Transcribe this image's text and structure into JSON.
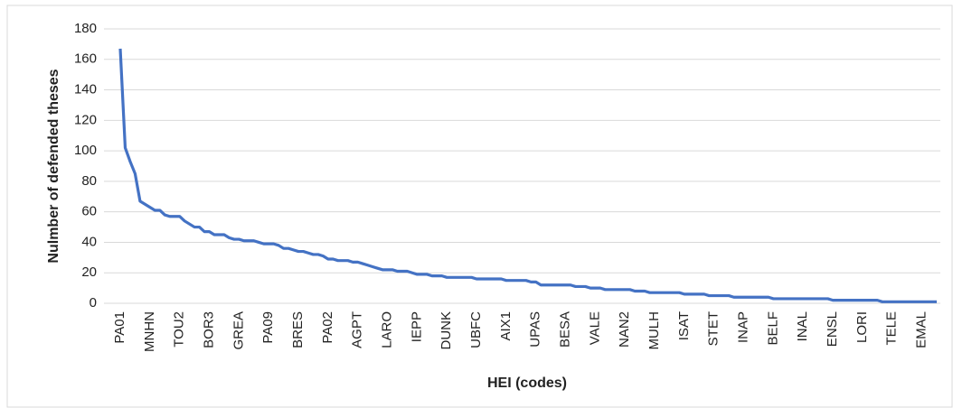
{
  "chart_data": {
    "type": "line",
    "y_label": "Nulmber of defended theses",
    "x_label": "HEI (codes)",
    "categories": [
      "PA01",
      null,
      null,
      null,
      null,
      null,
      "MNHN",
      null,
      null,
      null,
      null,
      null,
      "TOU2",
      null,
      null,
      null,
      null,
      null,
      "BOR3",
      null,
      null,
      null,
      null,
      null,
      "GREA",
      null,
      null,
      null,
      null,
      null,
      "PA09",
      null,
      null,
      null,
      null,
      null,
      "BRES",
      null,
      null,
      null,
      null,
      null,
      "PA02",
      null,
      null,
      null,
      null,
      null,
      "AGPT",
      null,
      null,
      null,
      null,
      null,
      "LARO",
      null,
      null,
      null,
      null,
      null,
      "IEPP",
      null,
      null,
      null,
      null,
      null,
      "DUNK",
      null,
      null,
      null,
      null,
      null,
      "UBFC",
      null,
      null,
      null,
      null,
      null,
      "AIX1",
      null,
      null,
      null,
      null,
      null,
      "UPAS",
      null,
      null,
      null,
      null,
      null,
      "BESA",
      null,
      null,
      null,
      null,
      null,
      "VALE",
      null,
      null,
      null,
      null,
      null,
      "NAN2",
      null,
      null,
      null,
      null,
      null,
      "MULH",
      null,
      null,
      null,
      null,
      null,
      "ISAT",
      null,
      null,
      null,
      null,
      null,
      "STET",
      null,
      null,
      null,
      null,
      null,
      "INAP",
      null,
      null,
      null,
      null,
      null,
      "BELF",
      null,
      null,
      null,
      null,
      null,
      "INAL",
      null,
      null,
      null,
      null,
      null,
      "ENSL",
      null,
      null,
      null,
      null,
      null,
      "LORI",
      null,
      null,
      null,
      null,
      null,
      "TELE",
      null,
      null,
      null,
      null,
      null,
      "EMAL",
      null,
      null,
      null
    ],
    "series": [
      {
        "name": "Number of defended theses",
        "color": "#4472c4",
        "values": [
          167,
          102,
          93,
          85,
          67,
          65,
          63,
          61,
          61,
          58,
          57,
          57,
          57,
          54,
          52,
          50,
          50,
          47,
          47,
          45,
          45,
          45,
          43,
          42,
          42,
          41,
          41,
          41,
          40,
          39,
          39,
          39,
          38,
          36,
          36,
          35,
          34,
          34,
          33,
          32,
          32,
          31,
          29,
          29,
          28,
          28,
          28,
          27,
          27,
          26,
          25,
          24,
          23,
          22,
          22,
          22,
          21,
          21,
          21,
          20,
          19,
          19,
          19,
          18,
          18,
          18,
          17,
          17,
          17,
          17,
          17,
          17,
          16,
          16,
          16,
          16,
          16,
          16,
          15,
          15,
          15,
          15,
          15,
          14,
          14,
          12,
          12,
          12,
          12,
          12,
          12,
          12,
          11,
          11,
          11,
          10,
          10,
          10,
          9,
          9,
          9,
          9,
          9,
          9,
          8,
          8,
          8,
          7,
          7,
          7,
          7,
          7,
          7,
          7,
          6,
          6,
          6,
          6,
          6,
          5,
          5,
          5,
          5,
          5,
          4,
          4,
          4,
          4,
          4,
          4,
          4,
          4,
          3,
          3,
          3,
          3,
          3,
          3,
          3,
          3,
          3,
          3,
          3,
          3,
          2,
          2,
          2,
          2,
          2,
          2,
          2,
          2,
          2,
          2,
          1,
          1,
          1,
          1,
          1,
          1,
          1,
          1,
          1,
          1,
          1,
          1
        ]
      }
    ],
    "ylim": [
      0,
      180
    ],
    "yticks": [
      0,
      20,
      40,
      60,
      80,
      100,
      120,
      140,
      160,
      180
    ],
    "grid": true
  }
}
